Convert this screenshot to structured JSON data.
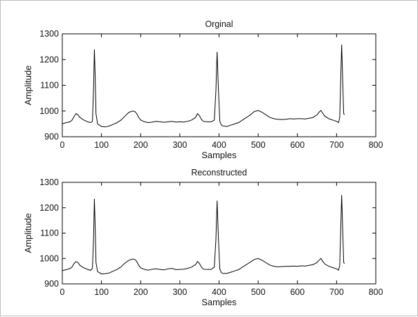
{
  "chart_data": [
    {
      "type": "line",
      "title": "Orginal",
      "xlabel": "Samples",
      "ylabel": "Amplitude",
      "xlim": [
        0,
        800
      ],
      "ylim": [
        900,
        1300
      ],
      "xticks": [
        0,
        100,
        200,
        300,
        400,
        500,
        600,
        700,
        800
      ],
      "yticks": [
        900,
        1000,
        1100,
        1200,
        1300
      ],
      "grid": false,
      "line_color": "#000000",
      "series": [
        {
          "x": [
            0,
            10,
            20,
            25,
            30,
            35,
            40,
            45,
            55,
            65,
            72,
            77,
            80,
            82,
            84,
            86,
            90,
            95,
            100,
            110,
            120,
            130,
            140,
            150,
            160,
            170,
            180,
            185,
            190,
            195,
            200,
            210,
            220,
            230,
            240,
            250,
            260,
            270,
            280,
            290,
            300,
            310,
            320,
            330,
            340,
            345,
            350,
            355,
            360,
            370,
            380,
            388,
            392,
            395,
            398,
            402,
            406,
            410,
            420,
            430,
            440,
            450,
            460,
            470,
            480,
            490,
            500,
            510,
            520,
            530,
            540,
            550,
            560,
            570,
            580,
            590,
            600,
            610,
            620,
            630,
            640,
            650,
            655,
            660,
            665,
            670,
            680,
            690,
            700,
            705,
            708,
            711,
            713,
            716,
            718,
            720
          ],
          "y": [
            950,
            955,
            958,
            965,
            978,
            990,
            985,
            975,
            965,
            958,
            955,
            960,
            1100,
            1240,
            1130,
            990,
            950,
            945,
            940,
            938,
            942,
            948,
            955,
            965,
            980,
            995,
            1000,
            998,
            990,
            975,
            965,
            958,
            955,
            957,
            960,
            958,
            956,
            958,
            960,
            957,
            958,
            957,
            960,
            965,
            975,
            990,
            982,
            968,
            960,
            958,
            958,
            965,
            1080,
            1230,
            1100,
            960,
            945,
            942,
            940,
            945,
            950,
            955,
            965,
            975,
            985,
            998,
            1002,
            995,
            985,
            975,
            970,
            968,
            967,
            968,
            970,
            969,
            970,
            970,
            969,
            972,
            975,
            985,
            995,
            1002,
            990,
            980,
            970,
            965,
            960,
            955,
            975,
            1150,
            1258,
            1100,
            990,
            985
          ]
        }
      ]
    },
    {
      "type": "line",
      "title": "Reconstructed",
      "xlabel": "Samples",
      "ylabel": "Amplitude",
      "xlim": [
        0,
        800
      ],
      "ylim": [
        900,
        1300
      ],
      "xticks": [
        0,
        100,
        200,
        300,
        400,
        500,
        600,
        700,
        800
      ],
      "yticks": [
        900,
        1000,
        1100,
        1200,
        1300
      ],
      "grid": false,
      "line_color": "#000000",
      "series": [
        {
          "x": [
            0,
            10,
            20,
            25,
            30,
            35,
            40,
            45,
            55,
            65,
            72,
            77,
            80,
            82,
            84,
            86,
            90,
            95,
            100,
            110,
            120,
            130,
            140,
            150,
            160,
            170,
            180,
            185,
            190,
            195,
            200,
            210,
            220,
            230,
            240,
            250,
            260,
            270,
            280,
            290,
            300,
            310,
            320,
            330,
            340,
            345,
            350,
            355,
            360,
            370,
            380,
            388,
            392,
            395,
            398,
            402,
            406,
            410,
            420,
            430,
            440,
            450,
            460,
            470,
            480,
            490,
            500,
            510,
            520,
            530,
            540,
            550,
            560,
            570,
            580,
            590,
            600,
            610,
            620,
            630,
            640,
            650,
            655,
            660,
            665,
            670,
            680,
            690,
            700,
            705,
            708,
            711,
            713,
            716,
            718,
            720
          ],
          "y": [
            952,
            956,
            960,
            967,
            980,
            988,
            984,
            973,
            963,
            957,
            953,
            962,
            1090,
            1235,
            1120,
            985,
            948,
            944,
            939,
            940,
            943,
            950,
            957,
            967,
            982,
            993,
            998,
            996,
            988,
            973,
            963,
            957,
            954,
            958,
            959,
            957,
            955,
            959,
            961,
            956,
            957,
            958,
            961,
            966,
            976,
            988,
            980,
            966,
            958,
            957,
            957,
            966,
            1075,
            1228,
            1095,
            958,
            944,
            941,
            941,
            946,
            951,
            956,
            966,
            976,
            986,
            996,
            1000,
            993,
            983,
            974,
            969,
            967,
            968,
            969,
            969,
            970,
            969,
            971,
            970,
            973,
            976,
            984,
            993,
            1000,
            988,
            978,
            969,
            964,
            959,
            954,
            972,
            1140,
            1250,
            1095,
            985,
            980
          ]
        }
      ]
    }
  ]
}
